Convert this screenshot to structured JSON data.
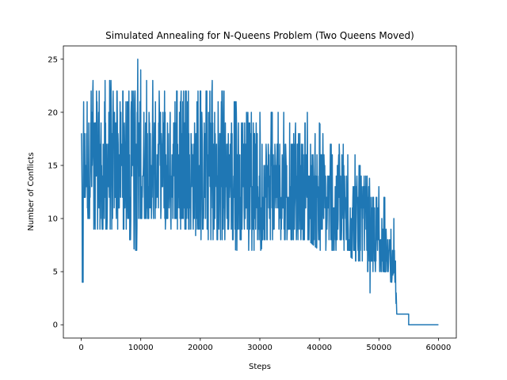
{
  "chart_data": {
    "type": "line",
    "title": "Simulated Annealing for N-Queens Problem (Two Queens Moved)",
    "xlabel": "Steps",
    "ylabel": "Number of Conflicts",
    "xlim": [
      -3000,
      63000
    ],
    "ylim": [
      -1.25,
      26.25
    ],
    "xticks": [
      0,
      10000,
      20000,
      30000,
      40000,
      50000,
      60000
    ],
    "xtick_labels": [
      "0",
      "10000",
      "20000",
      "30000",
      "40000",
      "50000",
      "60000"
    ],
    "yticks": [
      0,
      5,
      10,
      15,
      20,
      25
    ],
    "ytick_labels": [
      "0",
      "5",
      "10",
      "15",
      "20",
      "25"
    ],
    "grid": false,
    "series": [
      {
        "color": "#1f77b4",
        "x": [
          0,
          200,
          400,
          1000,
          2000,
          3000,
          4000,
          5000,
          6000,
          7000,
          8000,
          9000,
          9500,
          10000,
          12000,
          14000,
          16000,
          18000,
          20000,
          22000,
          24000,
          26000,
          28000,
          30000,
          32000,
          34000,
          36000,
          38000,
          40000,
          42000,
          44000,
          46000,
          48000,
          50000,
          51000,
          52000,
          52500,
          53000,
          55000,
          60000
        ],
        "upper": [
          18,
          21,
          21,
          21,
          23,
          22,
          23,
          23,
          22,
          22,
          22,
          22,
          25,
          24,
          23,
          22,
          22,
          22,
          22,
          23,
          22,
          21,
          20,
          20,
          20,
          20,
          19,
          20,
          19,
          17,
          17,
          16,
          14,
          13,
          12,
          9,
          10,
          6,
          1,
          0
        ],
        "lower": [
          13,
          4,
          12,
          10,
          9,
          9,
          9,
          9,
          9,
          9,
          8,
          7,
          10,
          10,
          10,
          9,
          9,
          9,
          8,
          8,
          8,
          7,
          7,
          7,
          8,
          8,
          8,
          8,
          7,
          7,
          7,
          6,
          5,
          5,
          5,
          4,
          5,
          1,
          0,
          0
        ],
        "mean": [
          15,
          14,
          15,
          15,
          15,
          15,
          15,
          15,
          15,
          15,
          15,
          15,
          15,
          15,
          15,
          15,
          15,
          14,
          14,
          14,
          14,
          14,
          14,
          13,
          13,
          13,
          13,
          12,
          12,
          11,
          11,
          10,
          9,
          8,
          7,
          6,
          6,
          3,
          0,
          0
        ],
        "drop_points": [
          [
            200,
            4
          ],
          [
            9300,
            7
          ],
          [
            48500,
            3
          ]
        ]
      }
    ]
  }
}
